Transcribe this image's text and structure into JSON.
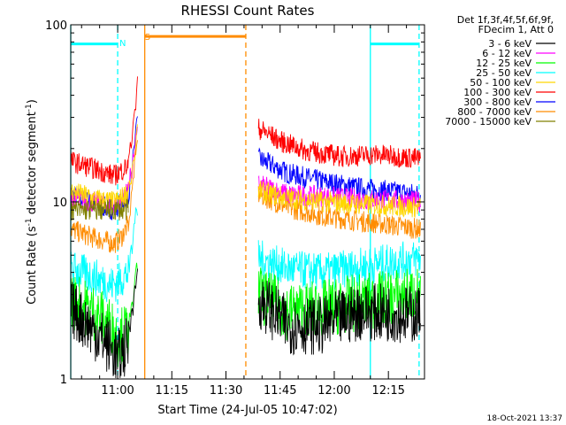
{
  "chart_data": {
    "type": "line",
    "title": "RHESSI Count Rates",
    "xlabel": "Start Time (24-Jul-05 10:47:02)",
    "ylabel_main": "Count Rate (s",
    "ylabel_sup": "-1",
    "ylabel_mid": " detector segment",
    "ylabel_end": ")",
    "x_scale_units": "minutes since 10:47:02",
    "xlim": [
      0,
      98
    ],
    "ylim": [
      1,
      100
    ],
    "y_log": true,
    "x_ticks": [
      {
        "label": "11:00",
        "value": 13
      },
      {
        "label": "11:15",
        "value": 28
      },
      {
        "label": "11:30",
        "value": 43
      },
      {
        "label": "11:45",
        "value": 58
      },
      {
        "label": "12:00",
        "value": 73
      },
      {
        "label": "12:15",
        "value": 88
      }
    ],
    "y_ticks": [
      {
        "label": "1",
        "value": 1
      },
      {
        "label": "10",
        "value": 10
      },
      {
        "label": "100",
        "value": 100
      }
    ],
    "legend_header": [
      "Det 1f,3f,4f,5f,6f,9f,",
      "FDecim 1, Att 0"
    ],
    "legend_placement": "right",
    "series": [
      {
        "name": "3 - 6 keV",
        "color": "#000000",
        "pre": [
          [
            0,
            2.5
          ],
          [
            6,
            1.9
          ],
          [
            11,
            1.5
          ],
          [
            13,
            1.3
          ],
          [
            16,
            1.6
          ]
        ],
        "post": [
          [
            52,
            2.8
          ],
          [
            60,
            2.0
          ],
          [
            70,
            2.0
          ],
          [
            80,
            2.4
          ],
          [
            97,
            2.3
          ]
        ]
      },
      {
        "name": "6 - 12 keV",
        "color": "#ff00ff",
        "pre": [
          [
            0,
            10.5
          ],
          [
            6,
            10.0
          ],
          [
            12,
            9.5
          ],
          [
            14,
            10.0
          ],
          [
            16,
            11.5
          ]
        ],
        "post": [
          [
            52,
            12.5
          ],
          [
            60,
            11.0
          ],
          [
            70,
            10.7
          ],
          [
            80,
            10.4
          ],
          [
            97,
            10.0
          ]
        ]
      },
      {
        "name": "12 - 25 keV",
        "color": "#00ff00",
        "pre": [
          [
            0,
            2.8
          ],
          [
            6,
            2.4
          ],
          [
            11,
            2.0
          ],
          [
            13,
            1.7
          ],
          [
            16,
            1.9
          ]
        ],
        "post": [
          [
            52,
            3.0
          ],
          [
            60,
            2.4
          ],
          [
            70,
            2.5
          ],
          [
            80,
            2.7
          ],
          [
            97,
            3.0
          ]
        ]
      },
      {
        "name": "25 - 50 keV",
        "color": "#00ffff",
        "pre": [
          [
            0,
            4.2
          ],
          [
            6,
            3.8
          ],
          [
            11,
            3.4
          ],
          [
            13,
            3.5
          ],
          [
            16,
            4.0
          ]
        ],
        "post": [
          [
            52,
            4.8
          ],
          [
            60,
            4.2
          ],
          [
            70,
            4.0
          ],
          [
            80,
            4.3
          ],
          [
            97,
            4.8
          ]
        ]
      },
      {
        "name": "50 - 100 keV",
        "color": "#ffd700",
        "pre": [
          [
            0,
            11.5
          ],
          [
            6,
            10.5
          ],
          [
            12,
            10.0
          ],
          [
            14,
            10.5
          ],
          [
            16,
            11.5
          ]
        ],
        "post": [
          [
            52,
            11.5
          ],
          [
            60,
            10.5
          ],
          [
            70,
            10.0
          ],
          [
            80,
            9.7
          ],
          [
            97,
            9.3
          ]
        ]
      },
      {
        "name": "100 - 300 keV",
        "color": "#ff0000",
        "pre": [
          [
            0,
            17.0
          ],
          [
            6,
            15.5
          ],
          [
            12,
            14.0
          ],
          [
            14,
            15.0
          ],
          [
            16,
            16.0
          ]
        ],
        "post": [
          [
            52,
            26.0
          ],
          [
            58,
            22.0
          ],
          [
            65,
            19.5
          ],
          [
            75,
            18.0
          ],
          [
            85,
            18.5
          ],
          [
            97,
            17.5
          ]
        ]
      },
      {
        "name": "300 - 800 keV",
        "color": "#0000ff",
        "pre": [
          [
            0,
            11.0
          ],
          [
            6,
            9.8
          ],
          [
            12,
            9.0
          ],
          [
            14,
            10.0
          ],
          [
            16,
            11.0
          ]
        ],
        "post": [
          [
            52,
            17.5
          ],
          [
            60,
            14.5
          ],
          [
            70,
            13.0
          ],
          [
            80,
            12.0
          ],
          [
            97,
            11.0
          ]
        ]
      },
      {
        "name": "800 - 7000 keV",
        "color": "#ff8c00",
        "pre": [
          [
            0,
            7.0
          ],
          [
            6,
            6.3
          ],
          [
            12,
            5.8
          ],
          [
            14,
            6.3
          ],
          [
            16,
            7.5
          ]
        ],
        "post": [
          [
            52,
            11.0
          ],
          [
            60,
            9.3
          ],
          [
            70,
            8.3
          ],
          [
            80,
            7.8
          ],
          [
            97,
            7.0
          ]
        ]
      },
      {
        "name": "7000 - 15000 keV",
        "color": "#808000",
        "pre": [
          [
            0,
            9.0
          ],
          [
            16,
            9.0
          ]
        ],
        "post": []
      }
    ],
    "rise_peaks": [
      47,
      30,
      25
    ],
    "rise_interval": [
      16,
      18.5
    ],
    "attenuator_markers": [
      {
        "label": "N",
        "color": "#00ffff",
        "x": 13,
        "style": "dashed"
      },
      {
        "label": "S",
        "color": "#ff8c00",
        "x": 20,
        "style": "solid"
      }
    ],
    "vertical_lines": [
      {
        "x": 0,
        "color": "#00ffff",
        "style": "solid"
      },
      {
        "x": 13,
        "color": "#00ffff",
        "style": "dashed"
      },
      {
        "x": 20.5,
        "color": "#ff8c00",
        "style": "solid"
      },
      {
        "x": 48.5,
        "color": "#ff8c00",
        "style": "dashed"
      },
      {
        "x": 83,
        "color": "#00ffff",
        "style": "solid"
      },
      {
        "x": 96.5,
        "color": "#00ffff",
        "style": "dashed"
      }
    ],
    "horizontal_bars": [
      {
        "x0": 0,
        "x1": 13,
        "y": 78,
        "color": "#00ffff"
      },
      {
        "x0": 20.5,
        "x1": 48.5,
        "y": 86,
        "color": "#ff8c00"
      },
      {
        "x0": 83,
        "x1": 96.5,
        "y": 78,
        "color": "#00ffff"
      }
    ]
  },
  "footer": {
    "timestamp": "18-Oct-2021 13:37"
  }
}
